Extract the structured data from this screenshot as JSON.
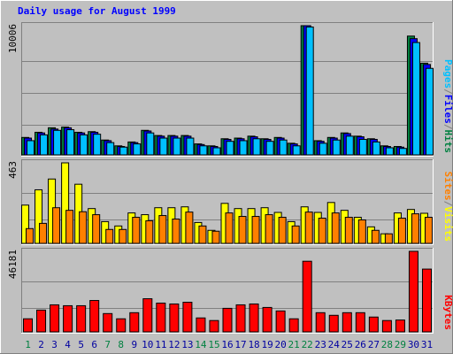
{
  "title": "Daily usage for August 1999",
  "colors": {
    "background": "#c0c0c0",
    "plot": "#c0c0c0",
    "grid": "#808080",
    "hits": "#008040",
    "files": "#0000ff",
    "pages": "#00c0ff",
    "visits": "#ffff00",
    "sites": "#ff8000",
    "kbytes": "#ff0000",
    "title": "#0000ff",
    "weekday": "#0000a0",
    "weekend": "#008040"
  },
  "chart_data": [
    {
      "type": "bar",
      "name": "hits-files-pages",
      "ymax_label": "10006",
      "ylim": [
        0,
        10006
      ],
      "legend": [
        "Pages",
        "/",
        "Files",
        "/",
        "Hits"
      ],
      "series": [
        {
          "name": "Hits",
          "values": [
            1350,
            1750,
            2100,
            2150,
            1750,
            1800,
            1150,
            700,
            1000,
            1900,
            1500,
            1500,
            1500,
            850,
            700,
            1250,
            1300,
            1450,
            1250,
            1350,
            900,
            10006,
            1100,
            1350,
            1700,
            1450,
            1250,
            700,
            650,
            9200,
            7100
          ]
        },
        {
          "name": "Files",
          "values": [
            1300,
            1700,
            2000,
            2100,
            1700,
            1750,
            1100,
            650,
            950,
            1850,
            1450,
            1450,
            1450,
            800,
            650,
            1200,
            1250,
            1400,
            1200,
            1300,
            850,
            10006,
            1050,
            1300,
            1650,
            1400,
            1200,
            650,
            600,
            9000,
            7000
          ]
        },
        {
          "name": "Pages",
          "values": [
            1100,
            1550,
            1900,
            1950,
            1550,
            1600,
            950,
            600,
            850,
            1700,
            1300,
            1300,
            1300,
            700,
            550,
            1050,
            1100,
            1250,
            1050,
            1150,
            700,
            9900,
            900,
            1150,
            1450,
            1200,
            1000,
            550,
            500,
            8700,
            6700
          ]
        }
      ]
    },
    {
      "type": "bar",
      "name": "visits-sites",
      "ymax_label": "463",
      "ylim": [
        0,
        463
      ],
      "legend": [
        "Sites",
        "/",
        "Visits"
      ],
      "series": [
        {
          "name": "Visits",
          "values": [
            220,
            308,
            370,
            463,
            340,
            200,
            125,
            100,
            175,
            165,
            205,
            205,
            210,
            120,
            75,
            230,
            200,
            200,
            205,
            178,
            125,
            210,
            178,
            235,
            190,
            150,
            95,
            55,
            175,
            195,
            173
          ]
        },
        {
          "name": "Sites",
          "values": [
            85,
            115,
            205,
            190,
            182,
            165,
            80,
            80,
            150,
            130,
            160,
            140,
            180,
            100,
            70,
            175,
            155,
            155,
            165,
            150,
            100,
            180,
            145,
            175,
            150,
            135,
            75,
            55,
            145,
            170,
            150
          ]
        }
      ]
    },
    {
      "type": "bar",
      "name": "kbytes",
      "ymax_label": "46181",
      "ylim": [
        0,
        46181
      ],
      "legend": [
        "KBytes"
      ],
      "series": [
        {
          "name": "KBytes",
          "values": [
            7500,
            12500,
            15500,
            15000,
            15000,
            18000,
            10500,
            7500,
            11000,
            19000,
            16500,
            16000,
            17000,
            8000,
            6500,
            13500,
            15500,
            16000,
            14000,
            12000,
            7500,
            40500,
            11000,
            9500,
            11000,
            11000,
            8500,
            6500,
            6800,
            46181,
            36000
          ]
        }
      ]
    }
  ],
  "x_labels": [
    "1",
    "2",
    "3",
    "4",
    "5",
    "6",
    "7",
    "8",
    "9",
    "10",
    "11",
    "12",
    "13",
    "14",
    "15",
    "16",
    "17",
    "18",
    "19",
    "20",
    "21",
    "22",
    "23",
    "24",
    "25",
    "26",
    "27",
    "28",
    "29",
    "30",
    "31"
  ],
  "weekend_days": [
    1,
    7,
    8,
    14,
    15,
    21,
    22,
    28,
    29
  ]
}
